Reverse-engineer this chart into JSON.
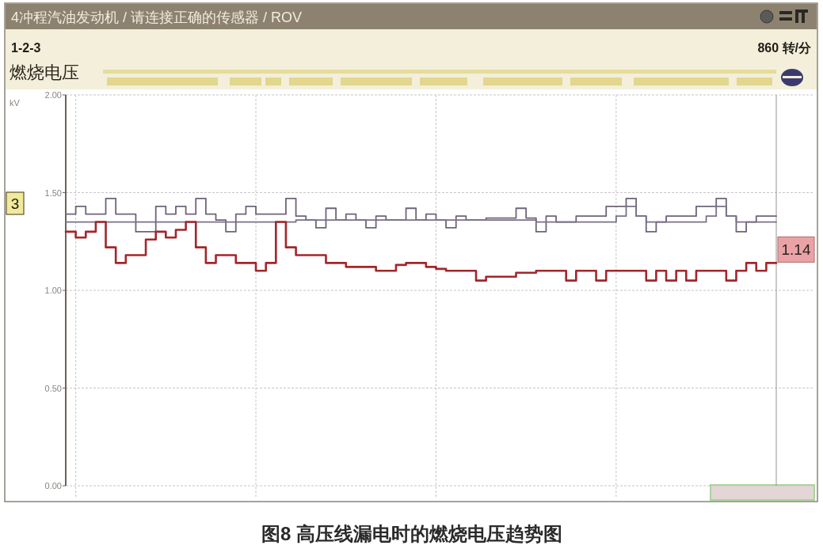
{
  "chart_data": {
    "type": "step",
    "title": "4冲程汽油发动机 / 请连接正确的传感器 / ROV",
    "subtitle": "燃烧电压",
    "ylabel": "kV",
    "annotations": [
      "1-2-3",
      "860 转/分",
      "3",
      "图8 高压线漏电时的燃烧电压趋势图"
    ],
    "categories": [
      null,
      null,
      null,
      null,
      null,
      null,
      null,
      null,
      null,
      null,
      null,
      null,
      null,
      null,
      null,
      null,
      null,
      null,
      null,
      null,
      null,
      null,
      null,
      null,
      null,
      null,
      null,
      null,
      null,
      null,
      null,
      null,
      null,
      null,
      null,
      null,
      null,
      null,
      null,
      null,
      null,
      null,
      null,
      null,
      null,
      null,
      null,
      null,
      null,
      null,
      null,
      null,
      null,
      null,
      null,
      null,
      null,
      null,
      null,
      null,
      null,
      null,
      null,
      null,
      null,
      null,
      null,
      null,
      null,
      null,
      null,
      null
    ],
    "ylim": [
      0,
      2
    ],
    "yticks": [
      {
        "value": 0,
        "label": "0.00"
      },
      {
        "value": 0.5,
        "label": "0.50"
      },
      {
        "value": 1,
        "label": "1.00"
      },
      {
        "value": 1.5,
        "label": "1.50"
      },
      {
        "value": 2,
        "label": "2.00"
      }
    ],
    "grid": true,
    "series": [
      {
        "color": "#6e6478",
        "values": [
          1.39,
          1.43,
          1.39,
          1.39,
          1.47,
          1.39,
          1.39,
          1.3,
          1.3,
          1.43,
          1.39,
          1.43,
          1.39,
          1.47,
          1.39,
          1.36,
          1.3,
          1.39,
          1.43,
          1.39,
          1.39,
          1.39,
          1.47,
          1.38,
          1.36,
          1.32,
          1.42,
          1.36,
          1.39,
          1.36,
          1.32,
          1.38,
          1.36,
          1.36,
          1.42,
          1.36,
          1.39,
          1.36,
          1.32,
          1.38,
          1.36,
          1.36,
          1.37,
          1.37,
          1.37,
          1.42,
          1.37,
          1.3,
          1.38,
          1.35,
          1.35,
          1.38,
          1.38,
          1.38,
          1.43,
          1.43,
          1.47,
          1.38,
          1.3,
          1.35,
          1.38,
          1.38,
          1.38,
          1.43,
          1.43,
          1.47,
          1.38,
          1.3,
          1.35,
          1.38,
          1.38,
          1.38
        ]
      },
      {
        "color": "#7a7088",
        "values": [
          1.35,
          1.35,
          1.35,
          1.35,
          1.35,
          1.35,
          1.35,
          1.35,
          1.35,
          1.35,
          1.35,
          1.35,
          1.35,
          1.35,
          1.35,
          1.35,
          1.35,
          1.35,
          1.35,
          1.35,
          1.35,
          1.35,
          1.35,
          1.36,
          1.36,
          1.36,
          1.36,
          1.36,
          1.36,
          1.36,
          1.36,
          1.36,
          1.36,
          1.36,
          1.36,
          1.36,
          1.36,
          1.36,
          1.36,
          1.36,
          1.36,
          1.36,
          1.36,
          1.36,
          1.36,
          1.36,
          1.36,
          1.35,
          1.35,
          1.35,
          1.35,
          1.35,
          1.35,
          1.35,
          1.35,
          1.38,
          1.43,
          1.38,
          1.35,
          1.35,
          1.35,
          1.35,
          1.35,
          1.35,
          1.38,
          1.43,
          1.38,
          1.35,
          1.35,
          1.35,
          1.35,
          1.35
        ]
      },
      {
        "color": "#a3262b",
        "values": [
          1.3,
          1.27,
          1.3,
          1.35,
          1.22,
          1.14,
          1.18,
          1.18,
          1.26,
          1.3,
          1.27,
          1.31,
          1.35,
          1.22,
          1.14,
          1.18,
          1.18,
          1.14,
          1.14,
          1.1,
          1.14,
          1.35,
          1.22,
          1.18,
          1.18,
          1.18,
          1.14,
          1.14,
          1.12,
          1.12,
          1.12,
          1.1,
          1.1,
          1.13,
          1.14,
          1.14,
          1.12,
          1.11,
          1.1,
          1.1,
          1.1,
          1.05,
          1.07,
          1.07,
          1.07,
          1.09,
          1.09,
          1.1,
          1.1,
          1.1,
          1.05,
          1.1,
          1.1,
          1.05,
          1.1,
          1.1,
          1.1,
          1.1,
          1.05,
          1.1,
          1.05,
          1.1,
          1.05,
          1.1,
          1.1,
          1.1,
          1.05,
          1.1,
          1.14,
          1.1,
          1.14,
          1.14
        ],
        "value_labels": [
          null,
          null,
          null,
          null,
          null,
          null,
          null,
          null,
          null,
          null,
          null,
          null,
          null,
          null,
          null,
          null,
          null,
          null,
          null,
          null,
          null,
          null,
          null,
          null,
          null,
          null,
          null,
          null,
          null,
          null,
          null,
          null,
          null,
          null,
          null,
          null,
          null,
          null,
          null,
          null,
          null,
          null,
          null,
          null,
          null,
          null,
          null,
          null,
          null,
          null,
          null,
          null,
          null,
          null,
          null,
          null,
          null,
          null,
          null,
          null,
          null,
          null,
          null,
          null,
          null,
          null,
          null,
          null,
          null,
          null,
          null,
          "1.14"
        ]
      }
    ]
  }
}
